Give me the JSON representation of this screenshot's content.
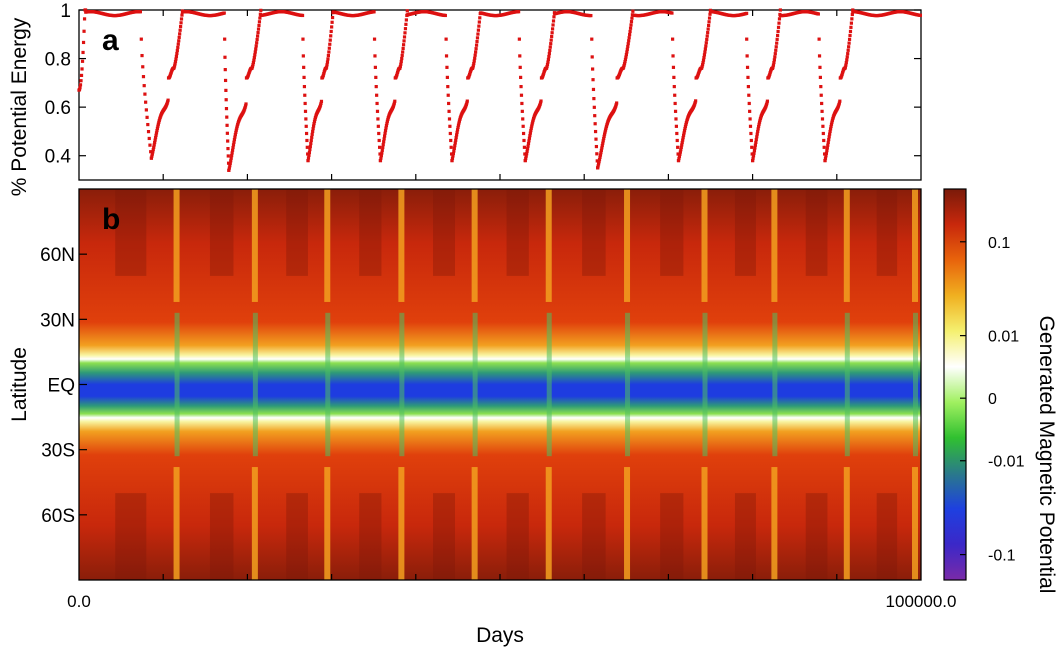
{
  "chart_data": [
    {
      "type": "scatter",
      "panel_label": "a",
      "ylabel": "% Potential Energy",
      "ylim": [
        0.3,
        1.0
      ],
      "yticks": [
        "0.4",
        "0.6",
        "0.8",
        "1"
      ],
      "ytick_values": [
        0.4,
        0.6,
        0.8,
        1.0
      ],
      "xlim": [
        0,
        100000
      ],
      "grid": false,
      "series_color": "#dd1111",
      "cycles": [
        {
          "drop_day": 7400,
          "min_day": 8600,
          "min_value": 0.39,
          "recover_day": 12300
        },
        {
          "drop_day": 17300,
          "min_day": 17800,
          "min_value": 0.34,
          "recover_day": 21600
        },
        {
          "drop_day": 26600,
          "min_day": 27200,
          "min_value": 0.38,
          "recover_day": 30200
        },
        {
          "drop_day": 35100,
          "min_day": 35800,
          "min_value": 0.38,
          "recover_day": 39000
        },
        {
          "drop_day": 43600,
          "min_day": 44300,
          "min_value": 0.38,
          "recover_day": 47700
        },
        {
          "drop_day": 52300,
          "min_day": 53000,
          "min_value": 0.38,
          "recover_day": 56500
        },
        {
          "drop_day": 60900,
          "min_day": 61600,
          "min_value": 0.35,
          "recover_day": 65800
        },
        {
          "drop_day": 70500,
          "min_day": 71200,
          "min_value": 0.38,
          "recover_day": 75000
        },
        {
          "drop_day": 79300,
          "min_day": 80000,
          "min_value": 0.38,
          "recover_day": 83300
        },
        {
          "drop_day": 87900,
          "min_day": 88600,
          "min_value": 0.38,
          "recover_day": 91900
        }
      ],
      "start_value": 0.67
    },
    {
      "type": "heatmap",
      "panel_label": "b",
      "ylabel": "Latitude",
      "xlabel": "Days",
      "xlim": [
        0,
        100000
      ],
      "xtick_labels": [
        "0.0",
        "100000.0"
      ],
      "ytick_labels": [
        "60N",
        "30N",
        "EQ",
        "30S",
        "60S"
      ],
      "ytick_values": [
        60,
        30,
        0,
        -30,
        -60
      ],
      "ylim": [
        -90,
        90
      ],
      "band_edge_latitude": 33,
      "colorbar": {
        "label": "Generated Magnetic Potential",
        "tick_labels": [
          "0.1",
          "0.01",
          "0",
          "-0.01",
          "-0.1"
        ],
        "colors_top_to_bottom": [
          "#7a1a0a",
          "#c8280c",
          "#e8640c",
          "#f0b020",
          "#f5f070",
          "#ffffff",
          "#a0f060",
          "#30c030",
          "#2a7a8a",
          "#1e40e0",
          "#3b28c8",
          "#7a2aa8"
        ]
      },
      "front_days": [
        0,
        12300,
        21600,
        30200,
        39000,
        47700,
        56500,
        65800,
        75000,
        83300,
        91900,
        100000
      ]
    }
  ]
}
